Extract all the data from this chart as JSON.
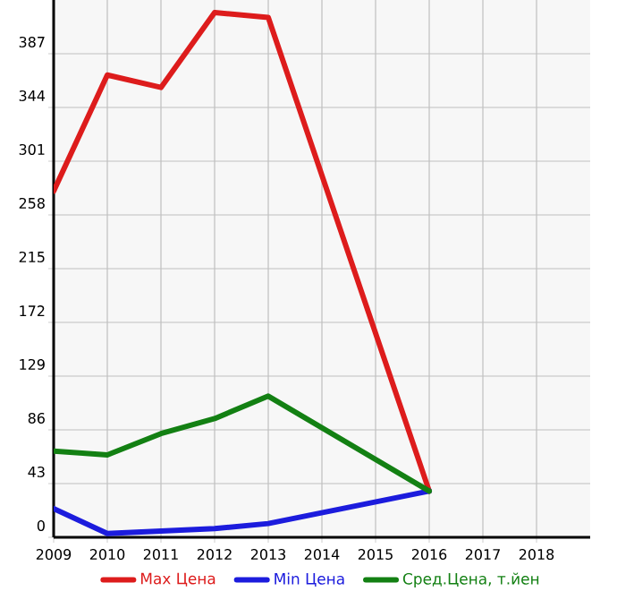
{
  "chart_data": {
    "type": "line",
    "x": [
      2009,
      2010,
      2011,
      2012,
      2013,
      2016
    ],
    "series": [
      {
        "name": "Max Цена",
        "color": "#dd1c1c",
        "values": [
          277,
          370,
          360,
          420,
          416,
          37
        ]
      },
      {
        "name": "Min Цена",
        "color": "#1c1cdd",
        "values": [
          23,
          3,
          5,
          7,
          11,
          37
        ]
      },
      {
        "name": "Сред.Цена, т.йен",
        "color": "#138013",
        "values": [
          69,
          66,
          83,
          95,
          113,
          37
        ]
      }
    ],
    "xlim": [
      2009,
      2019
    ],
    "xticks": [
      2009,
      2010,
      2011,
      2012,
      2013,
      2014,
      2015,
      2016,
      2017,
      2018
    ],
    "ylim": [
      0,
      430
    ],
    "yticks": [
      0,
      43,
      86,
      129,
      172,
      215,
      258,
      301,
      344,
      387
    ],
    "grid": true,
    "legend": "bottom",
    "marker": "none",
    "line_style": "solid"
  }
}
